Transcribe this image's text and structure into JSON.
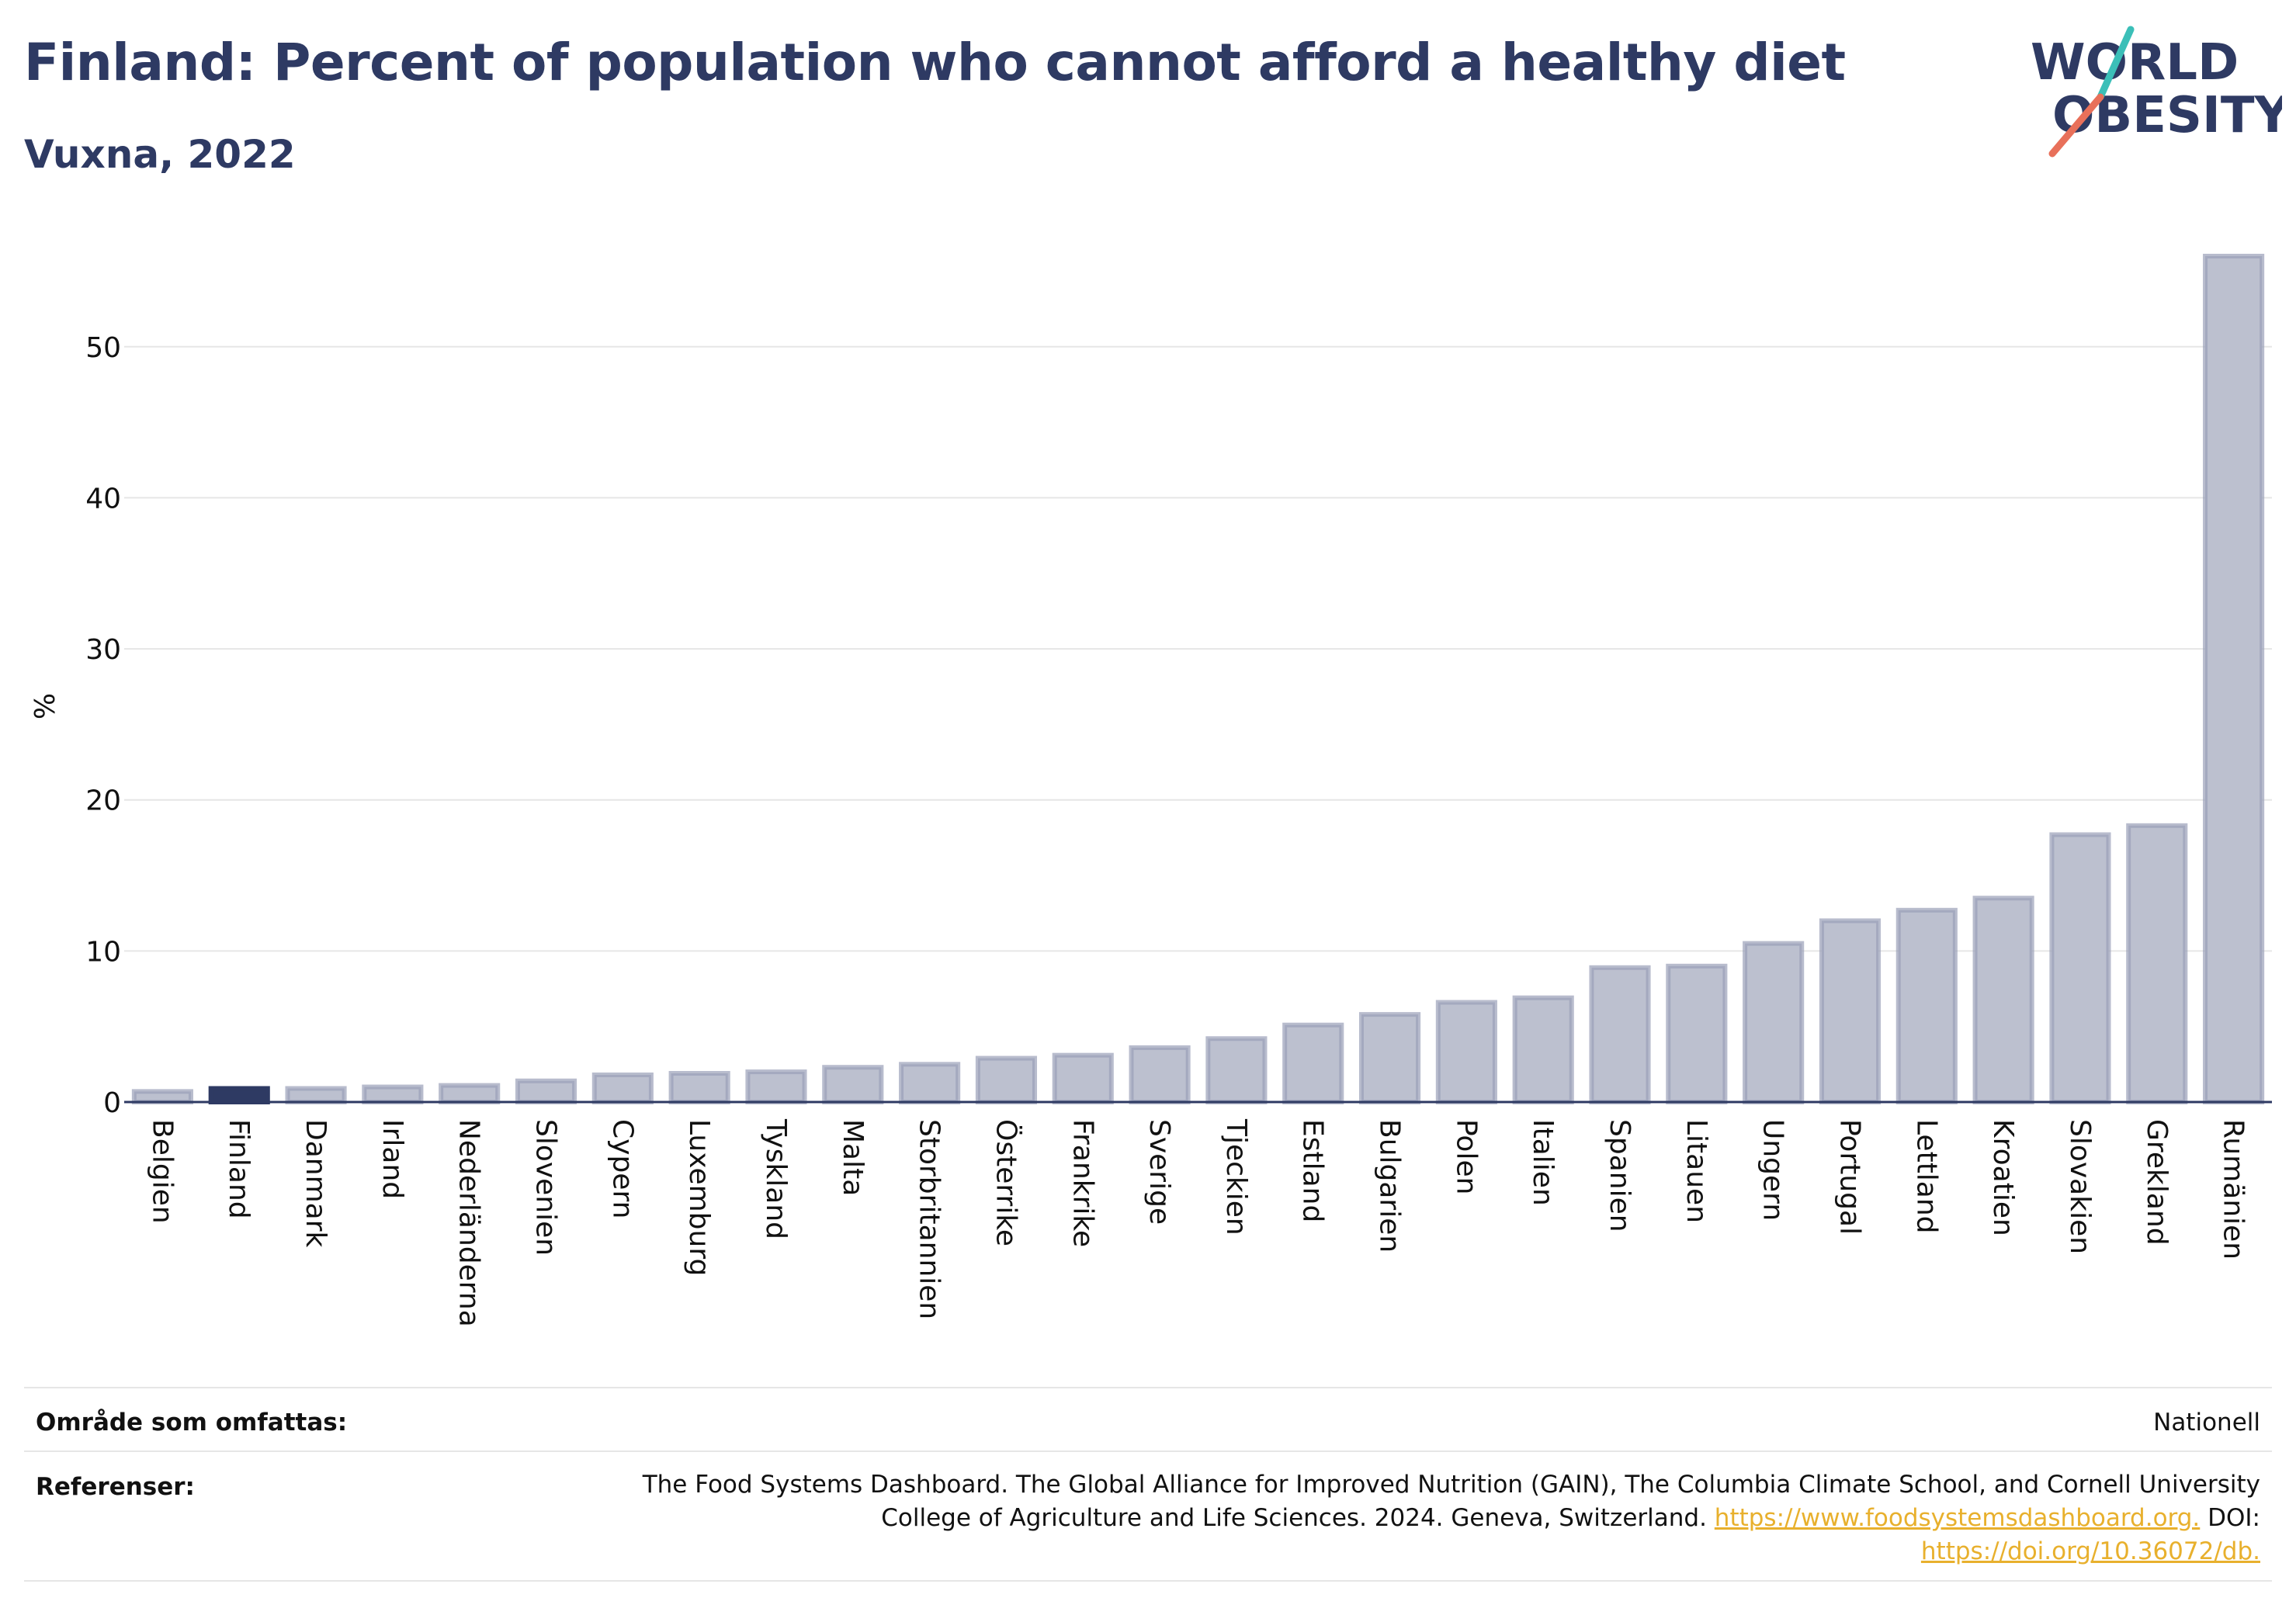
{
  "header": {
    "title": "Finland: Percent of population who cannot afford a healthy diet",
    "subtitle": "Vuxna, 2022"
  },
  "logo": {
    "line1": "WORLD",
    "line2": "OBESITY"
  },
  "colors": {
    "title": "#2e3a63",
    "bar_fill": "#bcc0cf",
    "bar_stroke": "#9aa0b8",
    "highlight": "#2e3a63",
    "grid": "#e6e6e6",
    "axis": "#2e3a63",
    "link": "#e8b02d",
    "logo_teal": "#3bbfb8",
    "logo_coral": "#e8705a"
  },
  "chart_data": {
    "type": "bar",
    "ylabel": "%",
    "ylim": [
      0,
      56
    ],
    "yticks": [
      0,
      10,
      20,
      30,
      40,
      50
    ],
    "grid": true,
    "highlight": "Finland",
    "categories": [
      "Belgien",
      "Finland",
      "Danmark",
      "Irland",
      "Nederländerna",
      "Slovenien",
      "Cypern",
      "Luxemburg",
      "Tyskland",
      "Malta",
      "Storbritannien",
      "Österrike",
      "Frankrike",
      "Sverige",
      "Tjeckien",
      "Estland",
      "Bulgarien",
      "Polen",
      "Italien",
      "Spanien",
      "Litauen",
      "Ungern",
      "Portugal",
      "Lettland",
      "Kroatien",
      "Slovakien",
      "Grekland",
      "Rumänien"
    ],
    "values": [
      0.7,
      0.9,
      0.9,
      1.0,
      1.1,
      1.4,
      1.8,
      1.9,
      2.0,
      2.3,
      2.5,
      2.9,
      3.1,
      3.6,
      4.2,
      5.1,
      5.8,
      6.6,
      6.9,
      8.9,
      9.0,
      10.5,
      12.0,
      12.7,
      13.5,
      17.7,
      18.3,
      56.0
    ]
  },
  "footer": {
    "coverage_label": "Område som omfattas:",
    "coverage_value": "Nationell",
    "refs_label": "Referenser:",
    "refs_text": "The Food Systems Dashboard. The Global Alliance for Improved Nutrition (GAIN), The Columbia Climate School, and Cornell University College of Agriculture and Life Sciences. 2024. Geneva, Switzerland.",
    "refs_link1": "https://www.foodsystemsdashboard.org.",
    "refs_doi": "DOI:",
    "refs_link2": "https://doi.org/10.36072/db."
  }
}
